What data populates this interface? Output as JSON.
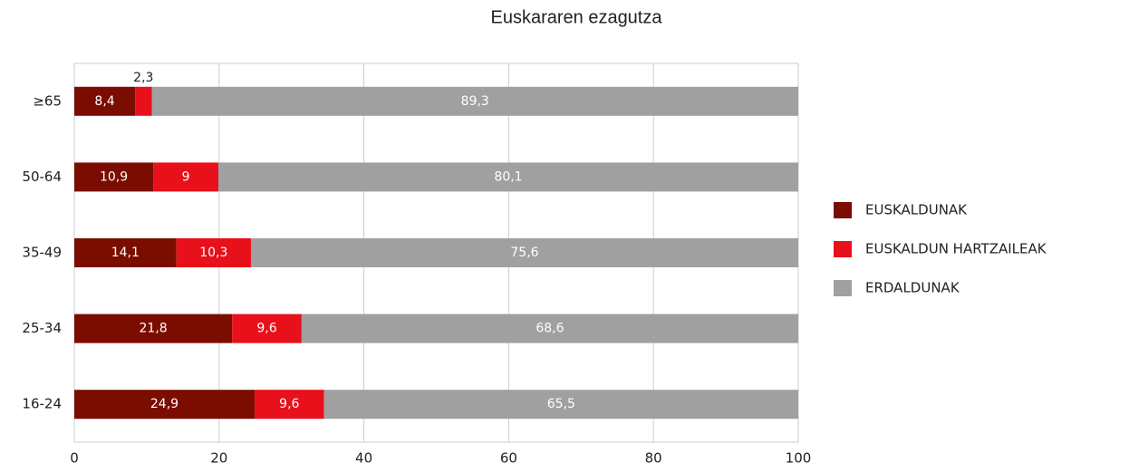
{
  "chart_data": {
    "type": "bar",
    "orientation": "horizontal",
    "stacked": true,
    "title": "Euskararen ezagutza",
    "categories": [
      "≥65",
      "50-64",
      "35-49",
      "25-34",
      "16-24"
    ],
    "series": [
      {
        "name": "EUSKALDUNAK",
        "color": "#7b0c00",
        "values": [
          8.4,
          10.9,
          14.1,
          21.8,
          24.9
        ],
        "value_labels": [
          "8,4",
          "10,9",
          "14,1",
          "21,8",
          "24,9"
        ]
      },
      {
        "name": "EUSKALDUN HARTZAILEAK",
        "color": "#e8101a",
        "values": [
          2.3,
          9,
          10.3,
          9.6,
          9.6
        ],
        "value_labels": [
          "2,3",
          "9",
          "10,3",
          "9,6",
          "9,6"
        ]
      },
      {
        "name": "ERDALDUNAK",
        "color": "#a0a0a0",
        "values": [
          89.3,
          80.1,
          75.6,
          68.6,
          65.5
        ],
        "value_labels": [
          "89,3",
          "80,1",
          "75,6",
          "68,6",
          "65,5"
        ]
      }
    ],
    "xlim": [
      0,
      100
    ],
    "xticks": [
      0,
      20,
      40,
      60,
      80,
      100
    ],
    "grid": true,
    "legend": "right"
  }
}
